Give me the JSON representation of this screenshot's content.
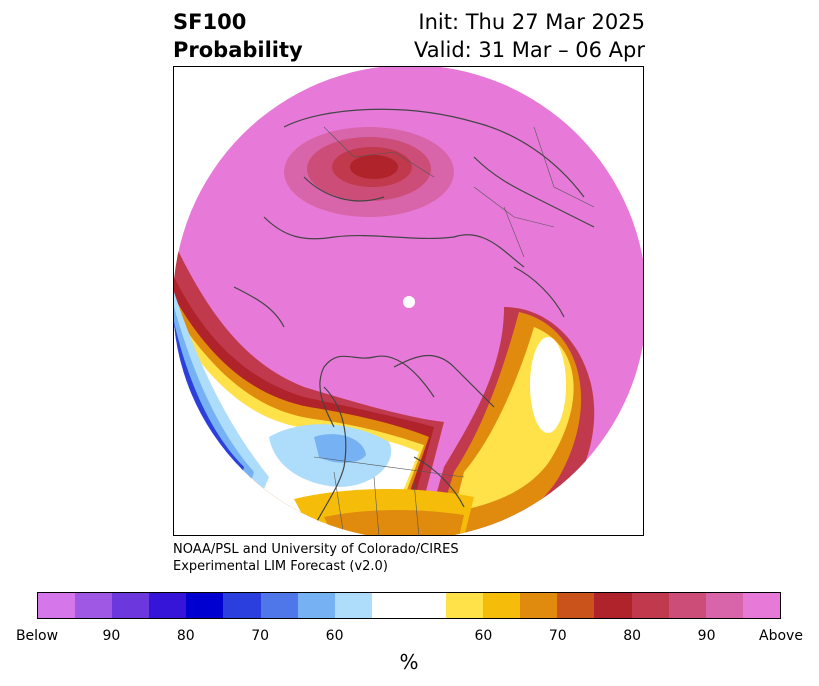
{
  "header": {
    "title_line1": "SF100",
    "title_line2": "Probability",
    "init": "Init: Thu 27 Mar 2025",
    "valid": "Valid: 31 Mar – 06 Apr"
  },
  "credit": {
    "line1": "NOAA/PSL and University of Colorado/CIRES",
    "line2": "Experimental LIM Forecast (v2.0)"
  },
  "colorbar": {
    "colors": [
      "#d577eb",
      "#9f58e4",
      "#6c38de",
      "#3715d8",
      "#0000d0",
      "#2a3fde",
      "#4f77ea",
      "#76b2f3",
      "#aedcfb",
      "#ffffff",
      "#ffffff",
      "#ffe14a",
      "#f5bd09",
      "#e08b0d",
      "#c9531a",
      "#b0232a",
      "#c1394d",
      "#cc4d78",
      "#d864a9",
      "#e77ad9"
    ],
    "ticks": [
      "Below",
      "90",
      "80",
      "70",
      "60",
      "60",
      "70",
      "80",
      "90",
      "Above"
    ],
    "label": "%"
  },
  "map": {
    "projection": "north-polar-stereographic",
    "regions": [
      {
        "name": "polar-above-normal",
        "color": "#e77ad9"
      },
      {
        "name": "eurasia-above-normal-core",
        "color": "#b0232a"
      },
      {
        "name": "north-america-below-normal",
        "color": "#aedcfb"
      },
      {
        "name": "pacific-below-normal",
        "color": "#2a3fde"
      },
      {
        "name": "atlantic-above-normal",
        "color": "#f5bd09"
      }
    ]
  }
}
